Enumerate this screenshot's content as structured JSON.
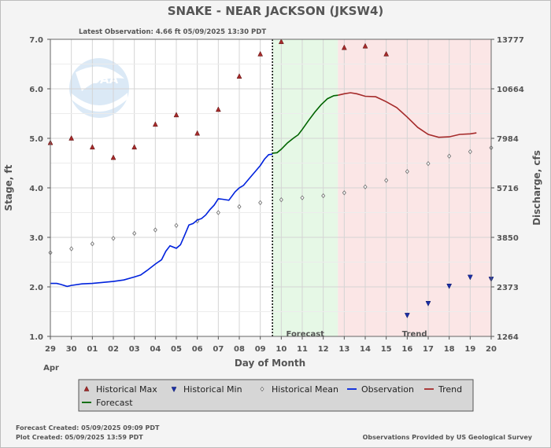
{
  "header": {
    "title": "SNAKE - NEAR JACKSON  (JKSW4)",
    "latest": "Latest Observation: 4.66 ft 05/09/2025 13:30 PDT"
  },
  "watermark": {
    "text": "NOAA"
  },
  "footer": {
    "forecast_created": "Forecast Created: 05/09/2025 09:09 PDT",
    "plot_created": "Plot Created: 05/09/2025 13:59 PDT",
    "credit": "Observations Provided by US Geological Survey"
  },
  "zones": {
    "forecast_label": "Forecast",
    "trend_label": "Trend"
  },
  "legend": [
    {
      "key": "hmax",
      "label": "Historical Max",
      "symbol": "triangle-up",
      "color": "#a52a2a"
    },
    {
      "key": "hmin",
      "label": "Historical Min",
      "symbol": "triangle-down",
      "color": "#1a2fa8"
    },
    {
      "key": "hmean",
      "label": "Historical Mean",
      "symbol": "diamond",
      "color": "#777777"
    },
    {
      "key": "obs",
      "label": "Observation",
      "symbol": "line",
      "color": "#0022dd"
    },
    {
      "key": "trend",
      "label": "Trend",
      "symbol": "line",
      "color": "#a52a2a"
    },
    {
      "key": "fcst",
      "label": "Forecast",
      "symbol": "line",
      "color": "#006400"
    }
  ],
  "chart_data": {
    "type": "line",
    "title": "SNAKE - NEAR JACKSON  (JKSW4)",
    "xlabel": "Day of Month",
    "xlabel_month": "Apr",
    "ylabel": "Stage, ft",
    "y2label": "Discharge, cfs",
    "x_ticks": [
      "29",
      "30",
      "01",
      "02",
      "03",
      "04",
      "05",
      "06",
      "07",
      "08",
      "09",
      "10",
      "11",
      "12",
      "13",
      "14",
      "15",
      "16",
      "17",
      "18",
      "19",
      "20"
    ],
    "xlim": [
      0,
      21
    ],
    "ylim": [
      1.0,
      7.0
    ],
    "y_ticks": [
      "1.0",
      "2.0",
      "3.0",
      "4.0",
      "5.0",
      "6.0",
      "7.0"
    ],
    "y2_ticks": [
      {
        "stage": 1.0,
        "label": "1264"
      },
      {
        "stage": 2.0,
        "label": "2373"
      },
      {
        "stage": 3.0,
        "label": "3850"
      },
      {
        "stage": 4.0,
        "label": "5716"
      },
      {
        "stage": 5.0,
        "label": "7984"
      },
      {
        "stage": 6.0,
        "label": "10664"
      },
      {
        "stage": 7.0,
        "label": "13777"
      }
    ],
    "grid": true,
    "now_x": 10.58,
    "forecast_range": [
      10.58,
      13.7
    ],
    "trend_range": [
      13.7,
      21
    ],
    "colors": {
      "forecast_zone": "#e6f8e6",
      "trend_zone": "#fbe6e6",
      "now_line": "#000000"
    },
    "series": [
      {
        "name": "Historical Max",
        "marker": "triangle-up",
        "color": "#a52a2a",
        "points": [
          [
            0,
            4.91
          ],
          [
            1,
            5.0
          ],
          [
            2,
            4.82
          ],
          [
            3,
            4.61
          ],
          [
            4,
            4.82
          ],
          [
            5,
            5.28
          ],
          [
            6,
            5.47
          ],
          [
            7,
            5.1
          ],
          [
            8,
            5.58
          ],
          [
            9,
            6.25
          ],
          [
            10,
            6.7
          ],
          [
            11,
            6.95
          ],
          [
            14,
            6.83
          ],
          [
            15,
            6.86
          ],
          [
            16,
            6.7
          ]
        ]
      },
      {
        "name": "Historical Min",
        "marker": "triangle-down",
        "color": "#1a2fa8",
        "points": [
          [
            17,
            1.43
          ],
          [
            18,
            1.67
          ],
          [
            19,
            2.02
          ],
          [
            20,
            2.2
          ],
          [
            21,
            2.16
          ]
        ]
      },
      {
        "name": "Historical Mean",
        "marker": "diamond",
        "color": "#777777",
        "points": [
          [
            0,
            2.69
          ],
          [
            1,
            2.77
          ],
          [
            2,
            2.87
          ],
          [
            3,
            2.98
          ],
          [
            4,
            3.08
          ],
          [
            5,
            3.15
          ],
          [
            6,
            3.24
          ],
          [
            7,
            3.33
          ],
          [
            8,
            3.5
          ],
          [
            9,
            3.62
          ],
          [
            10,
            3.7
          ],
          [
            11,
            3.76
          ],
          [
            12,
            3.8
          ],
          [
            13,
            3.84
          ],
          [
            14,
            3.9
          ],
          [
            15,
            4.02
          ],
          [
            16,
            4.15
          ],
          [
            17,
            4.33
          ],
          [
            18,
            4.49
          ],
          [
            19,
            4.64
          ],
          [
            20,
            4.73
          ],
          [
            21,
            4.81
          ]
        ]
      },
      {
        "name": "Observation",
        "style": "line",
        "color": "#0022dd",
        "points": [
          [
            0,
            2.07
          ],
          [
            0.3,
            2.07
          ],
          [
            0.5,
            2.05
          ],
          [
            0.8,
            2.01
          ],
          [
            1,
            2.03
          ],
          [
            1.5,
            2.06
          ],
          [
            2,
            2.07
          ],
          [
            2.5,
            2.09
          ],
          [
            3,
            2.11
          ],
          [
            3.5,
            2.14
          ],
          [
            4,
            2.2
          ],
          [
            4.3,
            2.24
          ],
          [
            4.6,
            2.33
          ],
          [
            5,
            2.46
          ],
          [
            5.3,
            2.55
          ],
          [
            5.5,
            2.72
          ],
          [
            5.7,
            2.83
          ],
          [
            6,
            2.78
          ],
          [
            6.2,
            2.85
          ],
          [
            6.4,
            3.05
          ],
          [
            6.6,
            3.25
          ],
          [
            6.8,
            3.28
          ],
          [
            7,
            3.35
          ],
          [
            7.2,
            3.38
          ],
          [
            7.4,
            3.45
          ],
          [
            7.6,
            3.56
          ],
          [
            7.8,
            3.65
          ],
          [
            8,
            3.78
          ],
          [
            8.2,
            3.77
          ],
          [
            8.5,
            3.75
          ],
          [
            8.8,
            3.92
          ],
          [
            9,
            4.0
          ],
          [
            9.2,
            4.05
          ],
          [
            9.5,
            4.2
          ],
          [
            9.8,
            4.35
          ],
          [
            10,
            4.45
          ],
          [
            10.2,
            4.58
          ],
          [
            10.4,
            4.67
          ],
          [
            10.58,
            4.68
          ]
        ]
      },
      {
        "name": "Forecast",
        "style": "line",
        "color": "#006400",
        "points": [
          [
            10.58,
            4.7
          ],
          [
            10.8,
            4.71
          ],
          [
            11,
            4.78
          ],
          [
            11.3,
            4.91
          ],
          [
            11.6,
            5.01
          ],
          [
            11.8,
            5.07
          ],
          [
            12,
            5.18
          ],
          [
            12.3,
            5.36
          ],
          [
            12.6,
            5.53
          ],
          [
            12.9,
            5.68
          ],
          [
            13.2,
            5.8
          ],
          [
            13.5,
            5.86
          ],
          [
            13.7,
            5.87
          ]
        ]
      },
      {
        "name": "Trend",
        "style": "line",
        "color": "#a52a2a",
        "points": [
          [
            13.7,
            5.87
          ],
          [
            14,
            5.9
          ],
          [
            14.3,
            5.92
          ],
          [
            14.6,
            5.9
          ],
          [
            15,
            5.85
          ],
          [
            15.5,
            5.84
          ],
          [
            16,
            5.74
          ],
          [
            16.5,
            5.62
          ],
          [
            17,
            5.43
          ],
          [
            17.5,
            5.22
          ],
          [
            18,
            5.08
          ],
          [
            18.5,
            5.02
          ],
          [
            19,
            5.03
          ],
          [
            19.5,
            5.08
          ],
          [
            20,
            5.09
          ],
          [
            20.3,
            5.11
          ]
        ]
      }
    ]
  }
}
